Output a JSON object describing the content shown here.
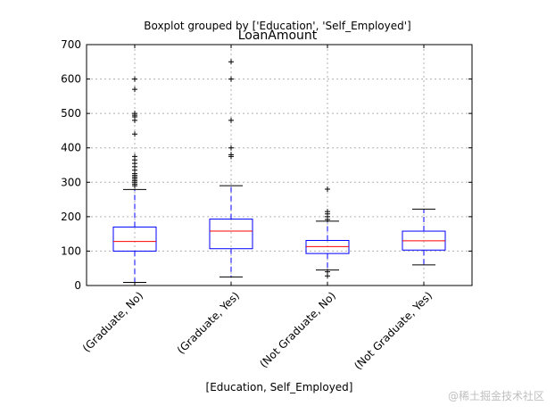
{
  "chart_data": {
    "type": "boxplot",
    "suptitle": "Boxplot grouped by ['Education', 'Self_Employed']",
    "title": "LoanAmount",
    "xlabel": "[Education, Self_Employed]",
    "ylabel": "",
    "ylim": [
      0,
      700
    ],
    "yticks": [
      0,
      100,
      200,
      300,
      400,
      500,
      600,
      700
    ],
    "grid": true,
    "categories": [
      "(Graduate, No)",
      "(Graduate, Yes)",
      "(Not Graduate, No)",
      "(Not Graduate, Yes)"
    ],
    "boxes": [
      {
        "whisker_low": 9,
        "q1": 100,
        "median": 128,
        "q3": 170,
        "whisker_high": 279,
        "outliers": [
          290,
          295,
          300,
          305,
          310,
          315,
          320,
          325,
          335,
          345,
          355,
          365,
          375,
          440,
          480,
          490,
          495,
          500,
          570,
          600
        ]
      },
      {
        "whisker_low": 25,
        "q1": 107,
        "median": 158,
        "q3": 193,
        "whisker_high": 290,
        "outliers": [
          375,
          380,
          400,
          480,
          600,
          650
        ]
      },
      {
        "whisker_low": 45,
        "q1": 93,
        "median": 113,
        "q3": 131,
        "whisker_high": 187,
        "outliers": [
          28,
          40,
          192,
          200,
          208,
          215,
          280
        ]
      },
      {
        "whisker_low": 60,
        "q1": 103,
        "median": 130,
        "q3": 158,
        "whisker_high": 222,
        "outliers": []
      }
    ],
    "colors": {
      "box": "#0000ff",
      "median": "#ff0000",
      "whisker": "#0000ff",
      "cap": "#000000",
      "flier": "#000000",
      "grid": "#b0b0b0"
    }
  },
  "watermark": "@稀土掘金技术社区"
}
